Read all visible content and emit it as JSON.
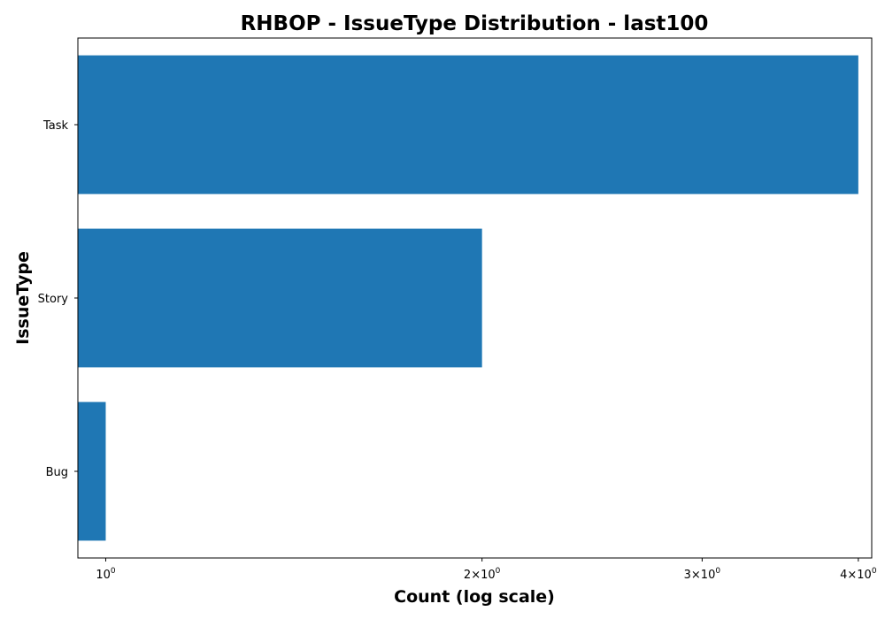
{
  "chart_data": {
    "type": "bar",
    "orientation": "horizontal",
    "title": "RHBOP - IssueType Distribution - last100",
    "xlabel": "Count (log scale)",
    "ylabel": "IssueType",
    "x_scale": "log",
    "xlim": [
      0.95,
      4.1
    ],
    "categories": [
      "Task",
      "Story",
      "Bug"
    ],
    "values": [
      4,
      2,
      1
    ],
    "bar_color": "#1f77b4",
    "x_ticks": [
      {
        "value": 1,
        "base": "10",
        "exp": "0"
      },
      {
        "value": 2,
        "base": "2×10",
        "exp": "0"
      },
      {
        "value": 3,
        "base": "3×10",
        "exp": "0"
      },
      {
        "value": 4,
        "base": "4×10",
        "exp": "0"
      }
    ],
    "grid": false,
    "legend": "none"
  }
}
